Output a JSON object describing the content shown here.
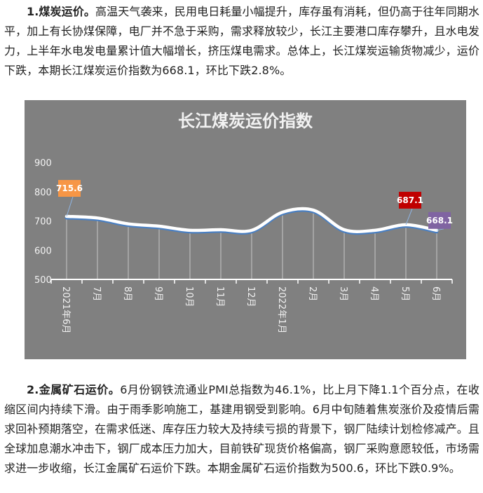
{
  "paragraph1": {
    "heading": "1.煤炭运价。",
    "body": "高温天气袭来，民用电日耗量小幅提升，库存虽有消耗，但仍高于往年同期水平，加上有长协煤保障，电厂并不急于采购，需求释放较少，长江主要港口库存攀升，且水电发力，上半年水电发电量累计值大幅增长，挤压煤电需求。总体上，长江煤炭运输货物减少，运价下跌，本期长江煤炭运价指数为668.1，环比下跌2.8%。"
  },
  "chart_data": {
    "type": "line",
    "title": "长江煤炭运价指数",
    "categories": [
      "2021年6月",
      "7月",
      "8月",
      "9月",
      "10月",
      "11月",
      "12月",
      "2022年1月",
      "2月",
      "3月",
      "4月",
      "5月",
      "6月"
    ],
    "values": [
      715.6,
      710,
      690,
      682,
      668,
      670,
      668,
      730,
      737,
      670,
      668,
      687.1,
      668.1
    ],
    "ylim": [
      500,
      900
    ],
    "yticks": [
      "500",
      "600",
      "700",
      "800",
      "900"
    ],
    "grid": false,
    "smooth": true,
    "background": "#808080",
    "line_color": "#ffffff",
    "shadow_color": "#4a7fc1",
    "data_labels": [
      {
        "index": 0,
        "text": "715.6",
        "color": "#f79646"
      },
      {
        "index": 11,
        "text": "687.1",
        "color": "#c00000"
      },
      {
        "index": 12,
        "text": "668.1",
        "color": "#8064a2"
      }
    ]
  },
  "paragraph2": {
    "heading": "2.金属矿石运价。",
    "body": "6月份钢铁流通业PMI总指数为46.1%，比上月下降1.1个百分点，在收缩区间内持续下滑。由于雨季影响施工，基建用钢受到影响。6月中旬随着焦炭涨价及疫情后需求回补预期落空，在需求低迷、库存压力较大及持续亏损的背景下，钢厂陆续计划检修减产。且全球加息潮水冲击下，钢厂成本压力加大，目前铁矿现货价格偏高，钢厂采购意愿较低，市场需求进一步收缩，长江金属矿石运价下跌。本期金属矿石运价指数为500.6，环比下跌0.9%。"
  }
}
